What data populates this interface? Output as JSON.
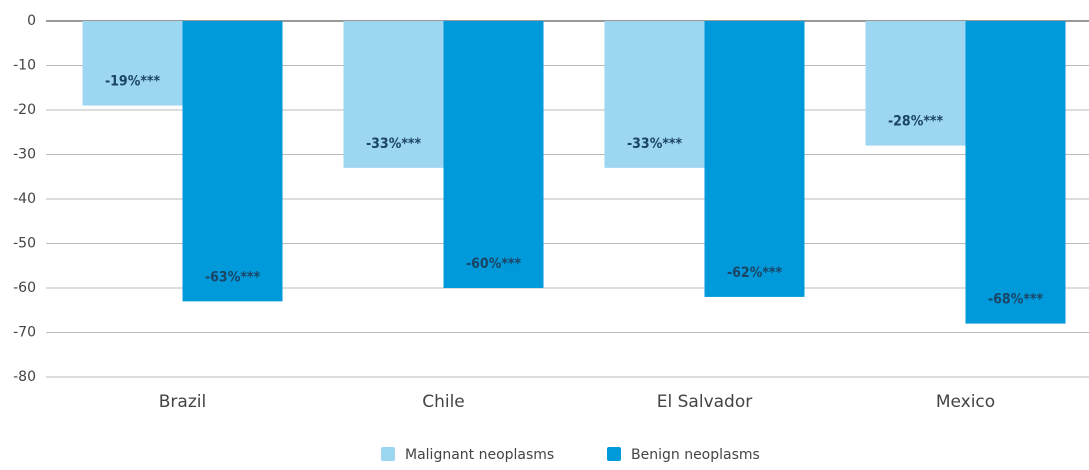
{
  "chart_data": {
    "type": "bar",
    "categories": [
      "Brazil",
      "Chile",
      "El Salvador",
      "Mexico"
    ],
    "series": [
      {
        "name": "Malignant neoplasms",
        "color": "#9dd6f1",
        "values": [
          -19,
          -33,
          -33,
          -28
        ],
        "value_labels": [
          "-19%***",
          "-33%***",
          "-33%***",
          "-28%***"
        ]
      },
      {
        "name": "Benign neoplasms",
        "color": "#0099da",
        "values": [
          -63,
          -60,
          -62,
          -68
        ],
        "value_labels": [
          "-63%***",
          "-60%***",
          "-62%***",
          "-68%***"
        ]
      }
    ],
    "ylim": [
      -80,
      0
    ],
    "yticks": [
      0,
      -10,
      -20,
      -30,
      -40,
      -50,
      -60,
      -70,
      -80
    ],
    "grid": true
  }
}
